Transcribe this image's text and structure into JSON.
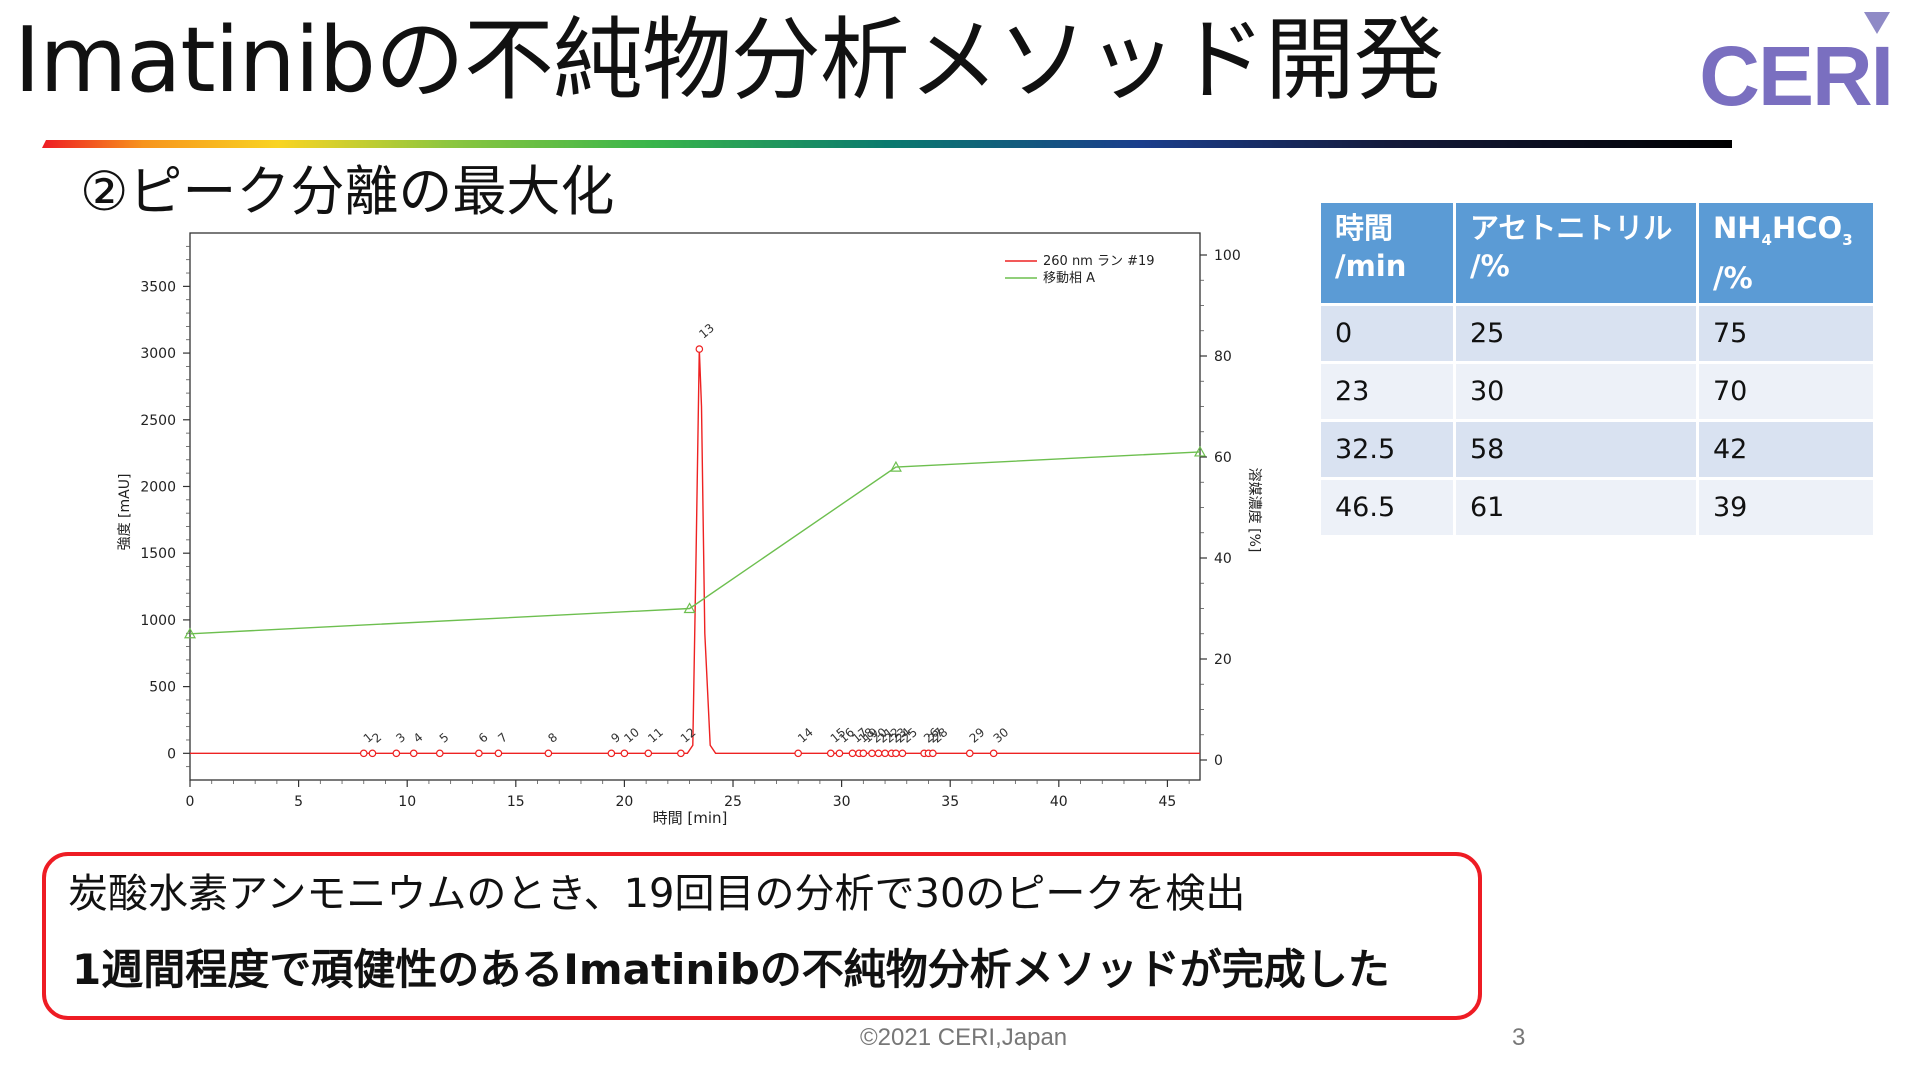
{
  "slide": {
    "title": "Imatinibの不純物分析メソッド開発",
    "subtitle": "②ピーク分離の最大化",
    "logo_text": "CERI",
    "footer": "©2021 CERI,Japan",
    "page_number": "3",
    "colors": {
      "logo": "#7a6fc0",
      "accent_red": "#ee1c24",
      "table_header": "#5b9bd5"
    }
  },
  "table": {
    "headers": [
      {
        "line1": "時間",
        "line2": "/min"
      },
      {
        "line1": "アセトニトリル",
        "line2": "/%"
      },
      {
        "line1": "NH",
        "sub1": "4",
        "line1b": "HCO",
        "sub2": "3",
        "line2": "/%"
      }
    ],
    "rows": [
      [
        "0",
        "25",
        "75"
      ],
      [
        "23",
        "30",
        "70"
      ],
      [
        "32.5",
        "58",
        "42"
      ],
      [
        "46.5",
        "61",
        "39"
      ]
    ]
  },
  "callout": {
    "line1": "炭酸水素アンモニウムのとき、19回目の分析で30のピークを検出",
    "line2": "1週間程度で頑健性のあるImatinibの不純物分析メソッドが完成した"
  },
  "chart_data": {
    "type": "line",
    "xlabel": "時間 [min]",
    "ylabel": "強度 [mAU]",
    "y2label": "溶媒濃度 [%]",
    "xlim": [
      0,
      46.5
    ],
    "ylim": [
      -200,
      3900
    ],
    "y2lim": [
      0,
      100
    ],
    "x_ticks": [
      "0",
      "5",
      "10",
      "15",
      "20",
      "25",
      "30",
      "35",
      "40",
      "45"
    ],
    "y_ticks": [
      "0",
      "500",
      "1000",
      "1500",
      "2000",
      "2500",
      "3000",
      "3500"
    ],
    "y2_ticks": [
      "0",
      "20",
      "40",
      "60",
      "80",
      "100"
    ],
    "legend_position": "top-right",
    "series": [
      {
        "name": "260 nm ラン #19",
        "color": "#ee2222",
        "axis": "left",
        "x": [
          0,
          22.9,
          23.15,
          23.3,
          23.45,
          23.55,
          23.7,
          23.95,
          24.2,
          46.5
        ],
        "values": [
          0,
          0,
          60,
          1500,
          3030,
          2600,
          900,
          60,
          0,
          0
        ]
      },
      {
        "name": "移動相 A",
        "color": "#6dbf4f",
        "axis": "right",
        "x": [
          0,
          23,
          32.5,
          46.5
        ],
        "values": [
          25,
          30,
          58,
          61
        ]
      }
    ],
    "peaks": [
      {
        "label": "1",
        "x": 8.0,
        "y": 0
      },
      {
        "label": "2",
        "x": 8.4,
        "y": 0
      },
      {
        "label": "3",
        "x": 9.5,
        "y": 0
      },
      {
        "label": "4",
        "x": 10.3,
        "y": 0
      },
      {
        "label": "5",
        "x": 11.5,
        "y": 0
      },
      {
        "label": "6",
        "x": 13.3,
        "y": 0
      },
      {
        "label": "7",
        "x": 14.2,
        "y": 0
      },
      {
        "label": "8",
        "x": 16.5,
        "y": 0
      },
      {
        "label": "9",
        "x": 19.4,
        "y": 0
      },
      {
        "label": "10",
        "x": 20.0,
        "y": 0
      },
      {
        "label": "11",
        "x": 21.1,
        "y": 0
      },
      {
        "label": "12",
        "x": 22.6,
        "y": 0
      },
      {
        "label": "13",
        "x": 23.45,
        "y": 3030
      },
      {
        "label": "14",
        "x": 28.0,
        "y": 0
      },
      {
        "label": "15",
        "x": 29.5,
        "y": 0
      },
      {
        "label": "16",
        "x": 29.9,
        "y": 0
      },
      {
        "label": "17",
        "x": 30.5,
        "y": 0
      },
      {
        "label": "18",
        "x": 30.8,
        "y": 0
      },
      {
        "label": "19",
        "x": 31.0,
        "y": 0
      },
      {
        "label": "20",
        "x": 31.4,
        "y": 0
      },
      {
        "label": "21",
        "x": 31.7,
        "y": 0
      },
      {
        "label": "22",
        "x": 32.0,
        "y": 0
      },
      {
        "label": "23",
        "x": 32.3,
        "y": 0
      },
      {
        "label": "24",
        "x": 32.5,
        "y": 0
      },
      {
        "label": "25",
        "x": 32.8,
        "y": 0
      },
      {
        "label": "26",
        "x": 33.8,
        "y": 0
      },
      {
        "label": "27",
        "x": 34.0,
        "y": 0
      },
      {
        "label": "28",
        "x": 34.2,
        "y": 0
      },
      {
        "label": "29",
        "x": 35.9,
        "y": 0
      },
      {
        "label": "30",
        "x": 37.0,
        "y": 0
      }
    ]
  }
}
